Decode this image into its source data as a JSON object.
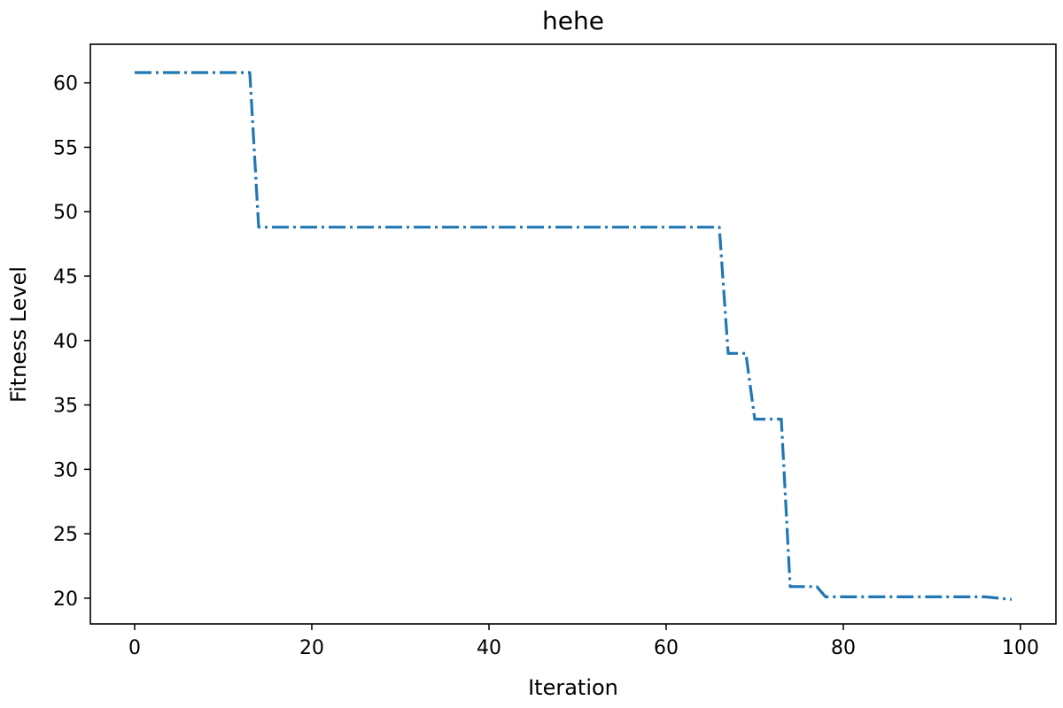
{
  "chart_data": {
    "type": "line",
    "title": "hehe",
    "xlabel": "Iteration",
    "ylabel": "Fitness Level",
    "xlim": [
      -5,
      104
    ],
    "ylim": [
      18,
      63
    ],
    "x_ticks": [
      0,
      20,
      40,
      60,
      80,
      100
    ],
    "y_ticks": [
      20,
      25,
      30,
      35,
      40,
      45,
      50,
      55,
      60
    ],
    "grid": false,
    "line_color": "#1f77b4",
    "line_style": "dashdot",
    "series": [
      {
        "x": [
          0,
          13,
          14,
          66,
          67,
          69,
          70,
          73,
          74,
          77,
          78,
          96,
          99
        ],
        "y": [
          60.8,
          60.8,
          48.8,
          48.8,
          39.0,
          39.0,
          33.9,
          33.9,
          20.9,
          20.9,
          20.1,
          20.1,
          19.9
        ]
      }
    ]
  }
}
